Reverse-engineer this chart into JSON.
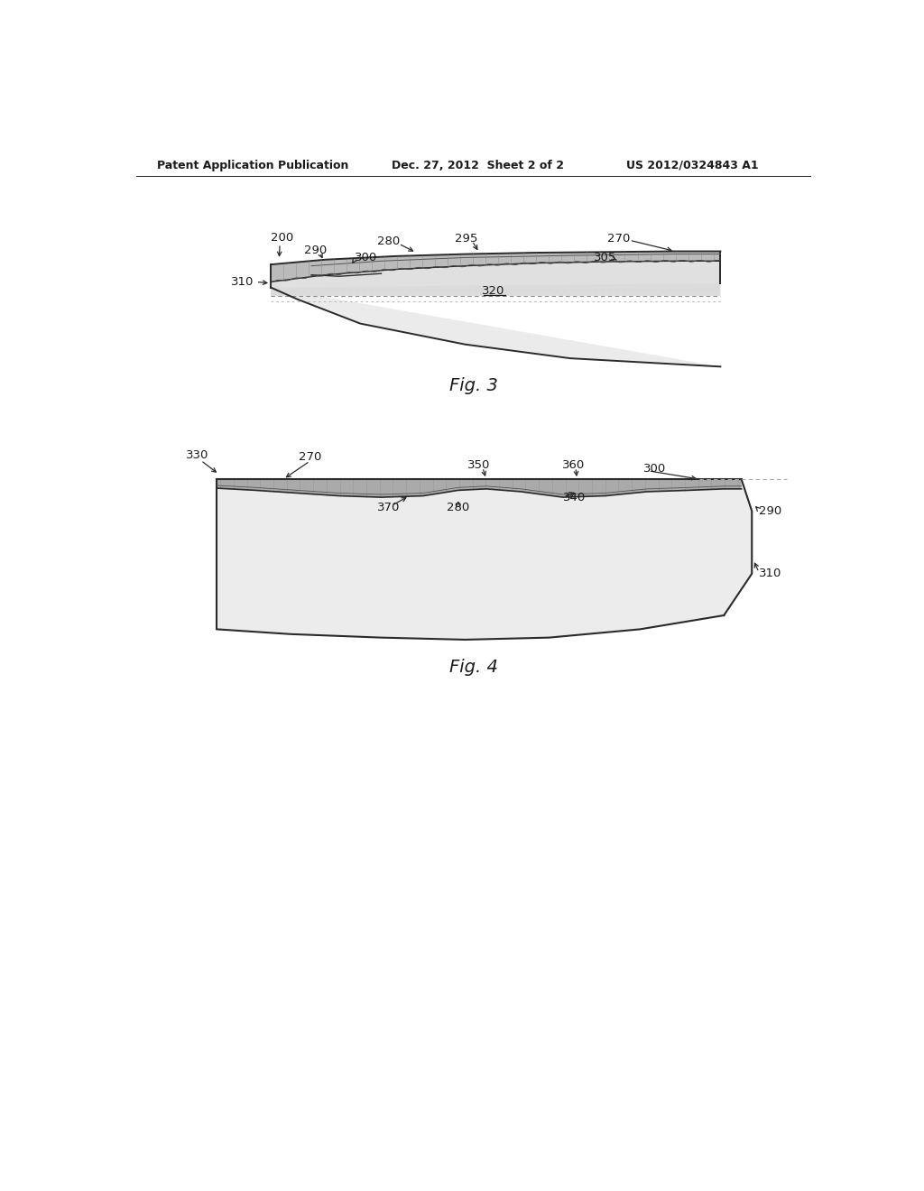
{
  "background_color": "#ffffff",
  "header_left": "Patent Application Publication",
  "header_center": "Dec. 27, 2012  Sheet 2 of 2",
  "header_right": "US 2012/0324843 A1",
  "fig3_label": "Fig. 3",
  "fig4_label": "Fig. 4",
  "text_color": "#1a1a1a",
  "line_color": "#2a2a2a",
  "gray_fill": "#cccccc",
  "light_gray": "#e8e8e8"
}
